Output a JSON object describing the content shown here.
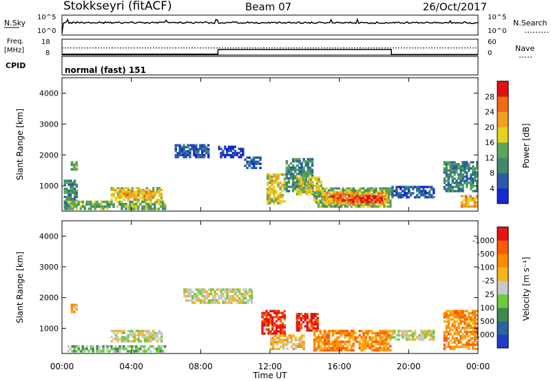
{
  "header": {
    "station": "Stokkseyri (fitACF)",
    "beam": "Beam 07",
    "date": "26/Oct/2017"
  },
  "noise_panel": {
    "left_label": "N.Sky",
    "left_tick_top": "10^5",
    "left_tick_bottom": "10^0",
    "right_label": "N.Search",
    "right_tick_top": "10^5",
    "right_tick_bottom": "10^0"
  },
  "freq_panel": {
    "left_label_line1": "Freq.",
    "left_label_line2": "[MHz]",
    "left_tick_top": "18",
    "left_tick_bottom": "8",
    "right_label": "Nave",
    "right_tick_top": "60",
    "right_tick_bottom": "0"
  },
  "cpid": {
    "label": "CPID",
    "program": "normal (fast) 151"
  },
  "axes": {
    "xlabel": "Time UT",
    "x_tick_labels": [
      "00:00",
      "04:00",
      "08:00",
      "12:00",
      "16:00",
      "20:00",
      "00:00"
    ],
    "ylabel": "Slant Range [km]",
    "y_tick_labels": [
      "1000",
      "2000",
      "3000",
      "4000"
    ]
  },
  "power_colorbar": {
    "title": "Power [dB]",
    "ticks": [
      "4",
      "8",
      "12",
      "16",
      "20",
      "24",
      "28"
    ],
    "colors": [
      "#1428d8",
      "#2a5aa8",
      "#3f8a68",
      "#5aa65a",
      "#e3d21e",
      "#f0a01e",
      "#ef6a14",
      "#e01010"
    ]
  },
  "velocity_colorbar": {
    "title": "Velocity [m s⁻¹]",
    "ticks": [
      "1000",
      "500",
      "100",
      "25",
      "-25",
      "-100",
      "-500",
      "-1000"
    ],
    "colors": [
      "#1e3cc8",
      "#2a64a0",
      "#3c8c50",
      "#6ccc3c",
      "#c8c8c8",
      "#f5b41e",
      "#ff8c00",
      "#ff5a00",
      "#e61414"
    ]
  },
  "chart_data": {
    "type": "heatmap",
    "x_range_hours": [
      0,
      24
    ],
    "y_range_km": [
      180,
      4500
    ],
    "frequency_mhz": [
      {
        "start_hour": 0.0,
        "end_hour": 9.0,
        "freq": 8.5
      },
      {
        "start_hour": 9.0,
        "end_hour": 19.0,
        "freq": 11.5
      },
      {
        "start_hour": 19.0,
        "end_hour": 24.0,
        "freq": 8.3
      }
    ],
    "nave": [
      {
        "start_hour": 0.0,
        "end_hour": 24.0,
        "value": 27
      }
    ],
    "power_regions": [
      {
        "t0": 0.1,
        "t1": 0.9,
        "r0": 220,
        "r1": 1200,
        "level": 2
      },
      {
        "t0": 0.5,
        "t1": 0.9,
        "r0": 1500,
        "r1": 1800,
        "level": 3
      },
      {
        "t0": 0.3,
        "t1": 6.0,
        "r0": 220,
        "r1": 520,
        "level": 3
      },
      {
        "t0": 2.8,
        "t1": 5.8,
        "r0": 520,
        "r1": 960,
        "level": 4
      },
      {
        "t0": 3.5,
        "t1": 5.3,
        "r0": 600,
        "r1": 850,
        "level": 5
      },
      {
        "t0": 6.5,
        "t1": 8.5,
        "r0": 1900,
        "r1": 2350,
        "level": 1
      },
      {
        "t0": 9.0,
        "t1": 10.5,
        "r0": 1900,
        "r1": 2300,
        "level": 0
      },
      {
        "t0": 10.5,
        "t1": 11.5,
        "r0": 1550,
        "r1": 1950,
        "level": 1
      },
      {
        "t0": 11.8,
        "t1": 12.9,
        "r0": 400,
        "r1": 1400,
        "level": 4
      },
      {
        "t0": 12.9,
        "t1": 14.5,
        "r0": 800,
        "r1": 1900,
        "level": 2
      },
      {
        "t0": 13.5,
        "t1": 15.0,
        "r0": 700,
        "r1": 1300,
        "level": 4
      },
      {
        "t0": 14.5,
        "t1": 19.0,
        "r0": 300,
        "r1": 950,
        "level": 3
      },
      {
        "t0": 15.0,
        "t1": 18.8,
        "r0": 400,
        "r1": 800,
        "level": 5
      },
      {
        "t0": 16.5,
        "t1": 18.5,
        "r0": 450,
        "r1": 700,
        "level": 7
      },
      {
        "t0": 15.5,
        "t1": 16.5,
        "r0": 500,
        "r1": 750,
        "level": 6
      },
      {
        "t0": 19.0,
        "t1": 21.5,
        "r0": 600,
        "r1": 1000,
        "level": 1
      },
      {
        "t0": 22.0,
        "t1": 24.0,
        "r0": 800,
        "r1": 1800,
        "level": 2
      },
      {
        "t0": 23.0,
        "t1": 24.0,
        "r0": 300,
        "r1": 700,
        "level": 5
      }
    ],
    "velocity_regions": [
      {
        "t0": 0.3,
        "t1": 6.0,
        "r0": 220,
        "r1": 450,
        "level": 3
      },
      {
        "t0": 2.8,
        "t1": 5.8,
        "r0": 550,
        "r1": 950,
        "level": 4
      },
      {
        "t0": 0.5,
        "t1": 0.9,
        "r0": 1500,
        "r1": 1800,
        "level": 5
      },
      {
        "t0": 7.0,
        "t1": 11.0,
        "r0": 1800,
        "r1": 2300,
        "level": 4
      },
      {
        "t0": 11.5,
        "t1": 12.9,
        "r0": 800,
        "r1": 1600,
        "level": 8
      },
      {
        "t0": 13.5,
        "t1": 14.8,
        "r0": 900,
        "r1": 1500,
        "level": 8
      },
      {
        "t0": 12.0,
        "t1": 14.0,
        "r0": 300,
        "r1": 800,
        "level": 5
      },
      {
        "t0": 14.5,
        "t1": 19.0,
        "r0": 250,
        "r1": 950,
        "level": 6
      },
      {
        "t0": 19.0,
        "t1": 21.5,
        "r0": 600,
        "r1": 950,
        "level": 4
      },
      {
        "t0": 22.0,
        "t1": 24.0,
        "r0": 300,
        "r1": 1600,
        "level": 6
      }
    ]
  }
}
